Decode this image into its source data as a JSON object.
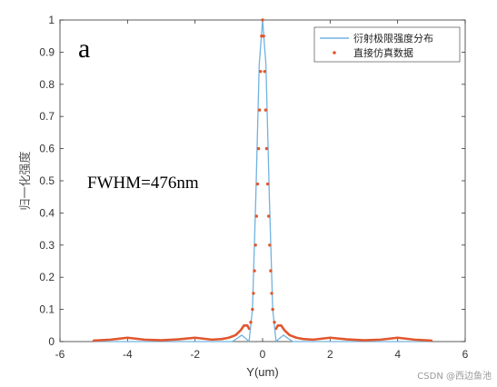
{
  "chart_data": {
    "type": "line",
    "panel_label": "a",
    "annotation": "FWHM=476nm",
    "xlabel": "Y(um)",
    "ylabel": "归一化强度",
    "xlim": [
      -6,
      6
    ],
    "ylim": [
      0,
      1
    ],
    "x_ticks": [
      -6,
      -4,
      -2,
      0,
      2,
      4,
      6
    ],
    "y_ticks": [
      0,
      0.1,
      0.2,
      0.3,
      0.4,
      0.5,
      0.6,
      0.7,
      0.8,
      0.9,
      1
    ],
    "legend_position": "top-right",
    "series": [
      {
        "name": "衍射极限强度分布",
        "style": "line",
        "color": "#72b2df",
        "x": [
          -5,
          -1.2,
          -0.9,
          -0.75,
          -0.62,
          -0.5,
          -0.4,
          -0.3,
          -0.2,
          -0.1,
          0,
          0.1,
          0.2,
          0.3,
          0.4,
          0.5,
          0.62,
          0.75,
          0.9,
          1.2,
          5
        ],
        "y": [
          0,
          0,
          0,
          0.01,
          0.02,
          0.01,
          0,
          0.1,
          0.45,
          0.86,
          1,
          0.86,
          0.45,
          0.1,
          0,
          0.01,
          0.02,
          0.01,
          0,
          0,
          0
        ]
      },
      {
        "name": "直接仿真数据",
        "style": "markers",
        "color": "#e0572e",
        "x": [
          -0.35,
          -0.3,
          -0.27,
          -0.24,
          -0.21,
          -0.18,
          -0.15,
          -0.12,
          -0.09,
          -0.06,
          -0.03,
          0,
          0.03,
          0.06,
          0.09,
          0.12,
          0.15,
          0.18,
          0.21,
          0.24,
          0.27,
          0.3,
          0.35
        ],
        "y": [
          0.06,
          0.1,
          0.15,
          0.22,
          0.3,
          0.39,
          0.49,
          0.6,
          0.72,
          0.84,
          0.95,
          1,
          0.95,
          0.84,
          0.72,
          0.6,
          0.49,
          0.39,
          0.3,
          0.22,
          0.15,
          0.1,
          0.06
        ],
        "floor": {
          "x": [
            -5,
            -4.5,
            -4,
            -3.5,
            -3,
            -2.5,
            -2,
            -1.5,
            -1.2,
            -1,
            -0.8,
            -0.65,
            -0.55,
            -0.45,
            -0.4,
            0.4,
            0.45,
            0.55,
            0.65,
            0.8,
            1,
            1.2,
            1.5,
            2,
            2.5,
            3,
            3.5,
            4,
            4.5,
            5
          ],
          "y": [
            0.003,
            0.006,
            0.012,
            0.006,
            0.004,
            0.007,
            0.012,
            0.006,
            0.008,
            0.012,
            0.02,
            0.035,
            0.05,
            0.05,
            0.04,
            0.04,
            0.05,
            0.05,
            0.035,
            0.02,
            0.012,
            0.008,
            0.006,
            0.012,
            0.007,
            0.004,
            0.006,
            0.012,
            0.006,
            0.003
          ]
        }
      }
    ]
  },
  "watermark": "CSDN @西边鱼池"
}
